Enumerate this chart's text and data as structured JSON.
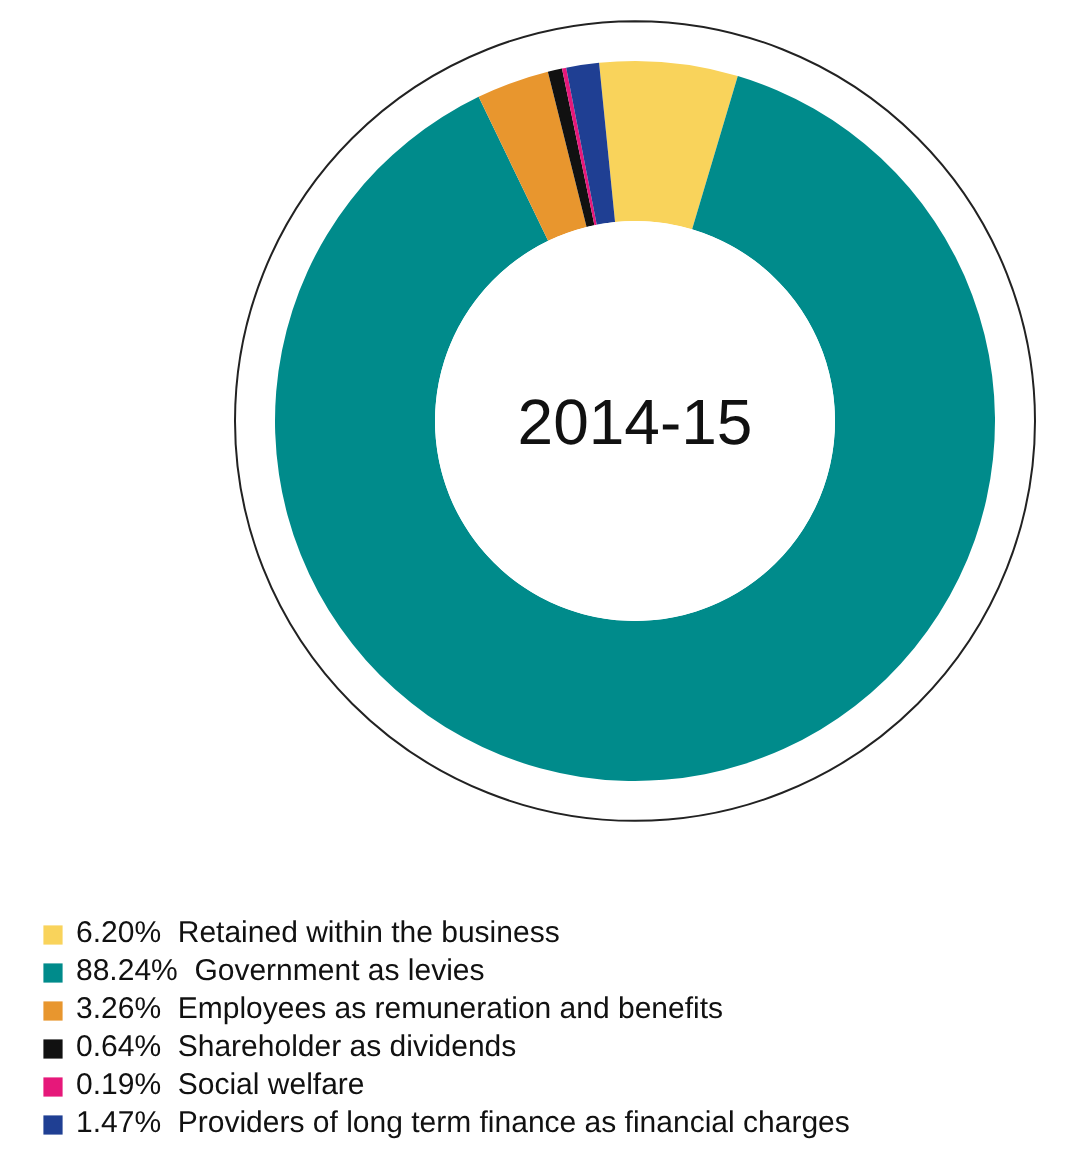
{
  "chart_data": {
    "type": "donut",
    "title": "2014-15",
    "categories": [
      "Retained within the business",
      "Government as levies",
      "Employees as remuneration and benefits",
      "Shareholder as dividends",
      "Social welfare",
      "Providers of long term finance as financial charges"
    ],
    "values": [
      6.2,
      88.24,
      3.26,
      0.64,
      0.19,
      1.47
    ],
    "value_labels": [
      "6.20%",
      "88.24%",
      "3.26%",
      "0.64%",
      "0.19%",
      "1.47%"
    ],
    "colors": [
      "#f9d35b",
      "#008b8b",
      "#e8962e",
      "#111111",
      "#e6187a",
      "#1f3f93"
    ],
    "legend": "bottom"
  }
}
